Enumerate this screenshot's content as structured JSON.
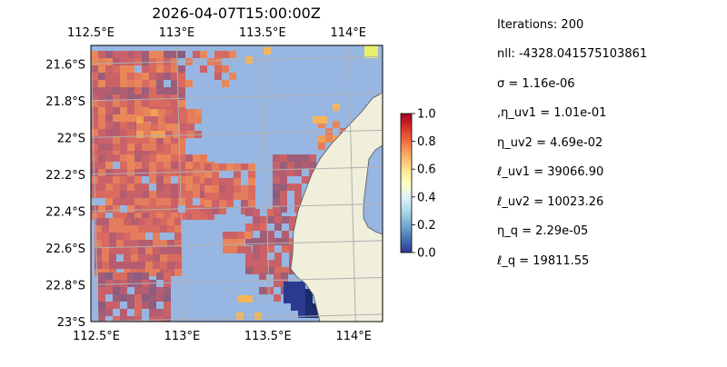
{
  "title": "2026-04-07T15:00:00Z",
  "map": {
    "lon_range": [
      112.5,
      114.2
    ],
    "lat_range": [
      -23.0,
      -21.5
    ],
    "lon_ticks": [
      {
        "value": 112.5,
        "label": "112.5°E"
      },
      {
        "value": 113.0,
        "label": "113°E"
      },
      {
        "value": 113.5,
        "label": "113.5°E"
      },
      {
        "value": 114.0,
        "label": "114°E"
      }
    ],
    "lat_ticks": [
      {
        "value": -21.6,
        "label": "21.6°S"
      },
      {
        "value": -21.8,
        "label": "21.8°S"
      },
      {
        "value": -22.0,
        "label": "22°S"
      },
      {
        "value": -22.2,
        "label": "22.2°S"
      },
      {
        "value": -22.4,
        "label": "22.4°S"
      },
      {
        "value": -22.6,
        "label": "22.6°S"
      },
      {
        "value": -22.8,
        "label": "22.8°S"
      },
      {
        "value": -23.0,
        "label": "23°S"
      }
    ],
    "ocean_color": "#98b6e2",
    "land_color": "#efefdc",
    "grid": true
  },
  "colorbar": {
    "range": [
      0.0,
      1.0
    ],
    "ticks": [
      "1.0",
      "0.8",
      "0.6",
      "0.4",
      "0.2",
      "0.0"
    ],
    "colormap": "RdYlBu_r"
  },
  "stats": [
    {
      "label": "Iterations: 200"
    },
    {
      "label": "nll: -4328.041575103861"
    },
    {
      "label": "σ = 1.16e-06"
    },
    {
      "label": ",η_uv1 = 1.01e-01"
    },
    {
      "label": "η_uv2 = 4.69e-02"
    },
    {
      "label": "ℓ_uv1 = 39066.90"
    },
    {
      "label": "ℓ_uv2 = 10023.26"
    },
    {
      "label": "η_q = 2.29e-05"
    },
    {
      "label": "ℓ_q = 19811.55"
    }
  ]
}
